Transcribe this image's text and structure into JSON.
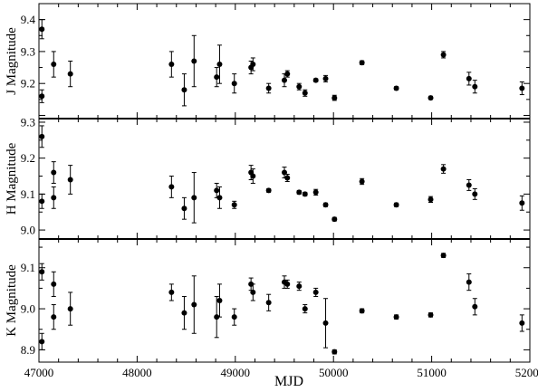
{
  "chart_data": {
    "type": "scatter",
    "xlabel": "MJD",
    "xlim": [
      47000,
      52000
    ],
    "xticks": [
      47000,
      48000,
      49000,
      50000,
      51000,
      52000
    ],
    "panels": [
      {
        "ylabel": "J Magnitude",
        "ylim": [
          9.09,
          9.45
        ],
        "yticks": [
          9.2,
          9.3,
          9.4
        ],
        "points": [
          {
            "x": 47030,
            "y": 9.37,
            "err": 0.03
          },
          {
            "x": 47030,
            "y": 9.16,
            "err": 0.02
          },
          {
            "x": 47150,
            "y": 9.26,
            "err": 0.04
          },
          {
            "x": 47320,
            "y": 9.23,
            "err": 0.04
          },
          {
            "x": 48350,
            "y": 9.26,
            "err": 0.04
          },
          {
            "x": 48480,
            "y": 9.18,
            "err": 0.05
          },
          {
            "x": 48580,
            "y": 9.27,
            "err": 0.08
          },
          {
            "x": 48810,
            "y": 9.22,
            "err": 0.03
          },
          {
            "x": 48840,
            "y": 9.26,
            "err": 0.06
          },
          {
            "x": 48990,
            "y": 9.2,
            "err": 0.03
          },
          {
            "x": 49160,
            "y": 9.25,
            "err": 0.02
          },
          {
            "x": 49180,
            "y": 9.26,
            "err": 0.02
          },
          {
            "x": 49340,
            "y": 9.185,
            "err": 0.015
          },
          {
            "x": 49500,
            "y": 9.21,
            "err": 0.02
          },
          {
            "x": 49530,
            "y": 9.23,
            "err": 0.01
          },
          {
            "x": 49650,
            "y": 9.19,
            "err": 0.01
          },
          {
            "x": 49710,
            "y": 9.17,
            "err": 0.01
          },
          {
            "x": 49820,
            "y": 9.21,
            "err": 0.005
          },
          {
            "x": 49920,
            "y": 9.215,
            "err": 0.01
          },
          {
            "x": 50010,
            "y": 9.155,
            "err": 0.008
          },
          {
            "x": 50290,
            "y": 9.265,
            "err": 0.006
          },
          {
            "x": 50640,
            "y": 9.185,
            "err": 0.005
          },
          {
            "x": 50990,
            "y": 9.155,
            "err": 0.005
          },
          {
            "x": 51120,
            "y": 9.29,
            "err": 0.01
          },
          {
            "x": 51380,
            "y": 9.215,
            "err": 0.02
          },
          {
            "x": 51440,
            "y": 9.19,
            "err": 0.02
          },
          {
            "x": 51920,
            "y": 9.185,
            "err": 0.02
          }
        ]
      },
      {
        "ylabel": "H Magnitude",
        "ylim": [
          8.975,
          9.31
        ],
        "yticks": [
          9.0,
          9.1,
          9.2,
          9.3
        ],
        "points": [
          {
            "x": 47030,
            "y": 9.26,
            "err": 0.03
          },
          {
            "x": 47030,
            "y": 9.08,
            "err": 0.02
          },
          {
            "x": 47150,
            "y": 9.16,
            "err": 0.03
          },
          {
            "x": 47150,
            "y": 9.09,
            "err": 0.03
          },
          {
            "x": 47320,
            "y": 9.14,
            "err": 0.04
          },
          {
            "x": 48350,
            "y": 9.12,
            "err": 0.03
          },
          {
            "x": 48480,
            "y": 9.06,
            "err": 0.03
          },
          {
            "x": 48580,
            "y": 9.09,
            "err": 0.07
          },
          {
            "x": 48810,
            "y": 9.11,
            "err": 0.02
          },
          {
            "x": 48840,
            "y": 9.09,
            "err": 0.03
          },
          {
            "x": 48990,
            "y": 9.07,
            "err": 0.01
          },
          {
            "x": 49160,
            "y": 9.16,
            "err": 0.02
          },
          {
            "x": 49180,
            "y": 9.15,
            "err": 0.02
          },
          {
            "x": 49340,
            "y": 9.11,
            "err": 0.005
          },
          {
            "x": 49500,
            "y": 9.16,
            "err": 0.015
          },
          {
            "x": 49530,
            "y": 9.145,
            "err": 0.01
          },
          {
            "x": 49650,
            "y": 9.105,
            "err": 0.005
          },
          {
            "x": 49710,
            "y": 9.1,
            "err": 0.005
          },
          {
            "x": 49820,
            "y": 9.105,
            "err": 0.008
          },
          {
            "x": 49920,
            "y": 9.07,
            "err": 0.005
          },
          {
            "x": 50010,
            "y": 9.03,
            "err": 0.005
          },
          {
            "x": 50290,
            "y": 9.135,
            "err": 0.008
          },
          {
            "x": 50640,
            "y": 9.07,
            "err": 0.005
          },
          {
            "x": 50990,
            "y": 9.085,
            "err": 0.008
          },
          {
            "x": 51120,
            "y": 9.17,
            "err": 0.012
          },
          {
            "x": 51380,
            "y": 9.125,
            "err": 0.015
          },
          {
            "x": 51440,
            "y": 9.1,
            "err": 0.015
          },
          {
            "x": 51920,
            "y": 9.075,
            "err": 0.02
          }
        ]
      },
      {
        "ylabel": "K Magnitude",
        "ylim": [
          8.87,
          9.17
        ],
        "yticks": [
          8.9,
          9.0,
          9.1
        ],
        "points": [
          {
            "x": 47030,
            "y": 9.09,
            "err": 0.02
          },
          {
            "x": 47030,
            "y": 8.92,
            "err": 0.02
          },
          {
            "x": 47150,
            "y": 9.06,
            "err": 0.03
          },
          {
            "x": 47150,
            "y": 8.98,
            "err": 0.03
          },
          {
            "x": 47320,
            "y": 9.0,
            "err": 0.04
          },
          {
            "x": 48350,
            "y": 9.04,
            "err": 0.02
          },
          {
            "x": 48480,
            "y": 8.99,
            "err": 0.04
          },
          {
            "x": 48580,
            "y": 9.01,
            "err": 0.07
          },
          {
            "x": 48810,
            "y": 8.98,
            "err": 0.05
          },
          {
            "x": 48840,
            "y": 9.02,
            "err": 0.04
          },
          {
            "x": 48990,
            "y": 8.98,
            "err": 0.02
          },
          {
            "x": 49160,
            "y": 9.06,
            "err": 0.015
          },
          {
            "x": 49180,
            "y": 9.04,
            "err": 0.02
          },
          {
            "x": 49340,
            "y": 9.015,
            "err": 0.02
          },
          {
            "x": 49500,
            "y": 9.065,
            "err": 0.015
          },
          {
            "x": 49530,
            "y": 9.06,
            "err": 0.01
          },
          {
            "x": 49650,
            "y": 9.055,
            "err": 0.01
          },
          {
            "x": 49710,
            "y": 9.0,
            "err": 0.01
          },
          {
            "x": 49820,
            "y": 9.04,
            "err": 0.01
          },
          {
            "x": 49920,
            "y": 8.965,
            "err": 0.06
          },
          {
            "x": 50010,
            "y": 8.895,
            "err": 0.005
          },
          {
            "x": 50290,
            "y": 8.995,
            "err": 0.005
          },
          {
            "x": 50640,
            "y": 8.98,
            "err": 0.005
          },
          {
            "x": 50990,
            "y": 8.985,
            "err": 0.005
          },
          {
            "x": 51120,
            "y": 9.13,
            "err": 0.005
          },
          {
            "x": 51380,
            "y": 9.065,
            "err": 0.02
          },
          {
            "x": 51440,
            "y": 9.005,
            "err": 0.02
          },
          {
            "x": 51920,
            "y": 8.965,
            "err": 0.02
          }
        ]
      }
    ]
  }
}
